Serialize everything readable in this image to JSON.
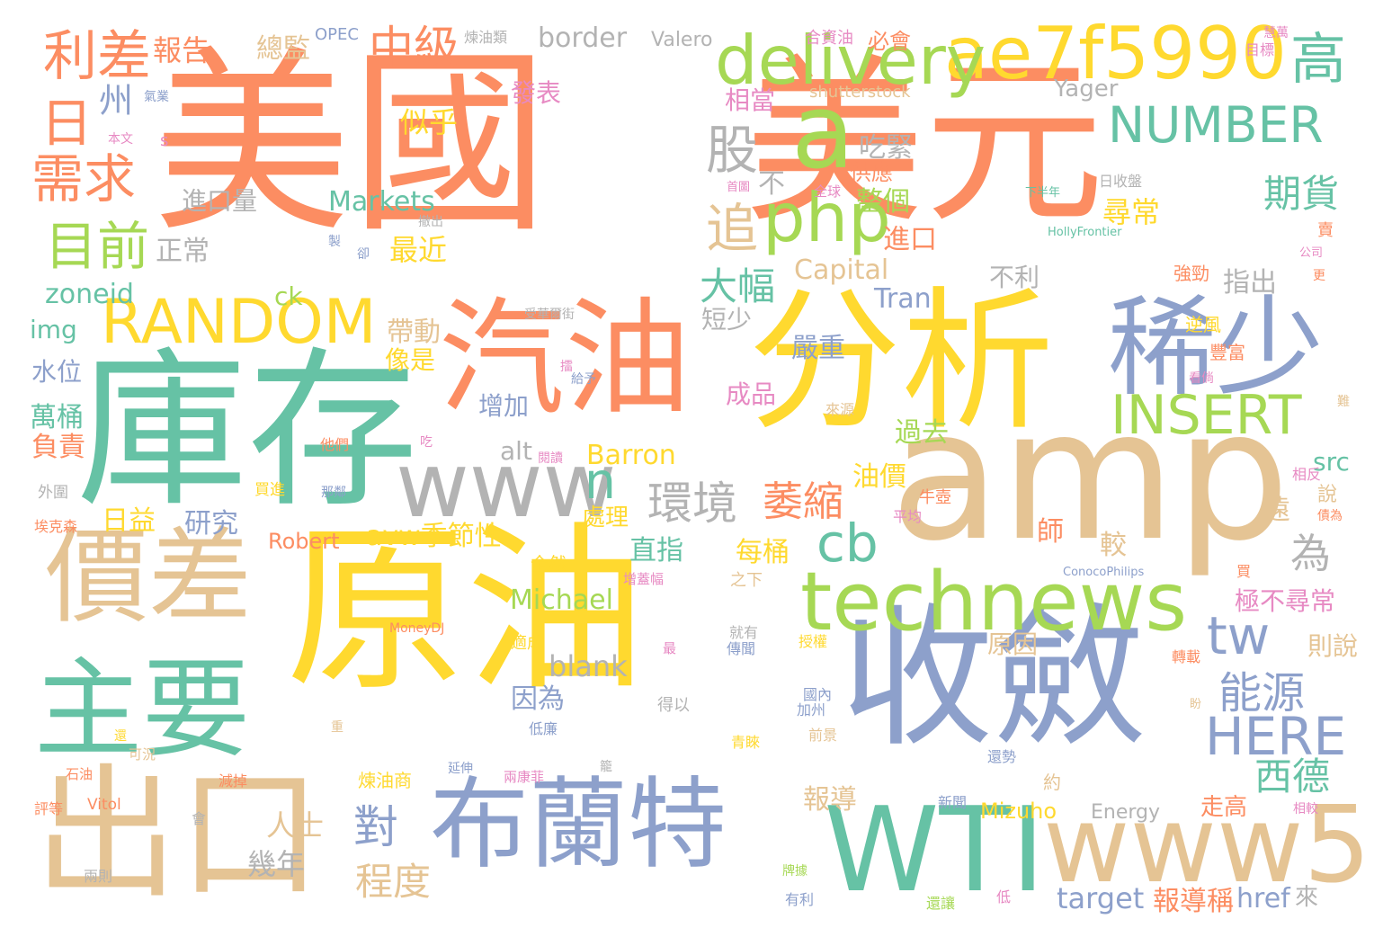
{
  "palette": {
    "orange": "#fc8d62",
    "yellow": "#ffd92f",
    "teal": "#66c2a5",
    "blue": "#8da0cb",
    "tan": "#e5c494",
    "green": "#a6d854",
    "pink": "#e78ac3",
    "gray": "#b3b3b3"
  },
  "words": [
    {
      "text": "美國",
      "color": "orange"
    },
    {
      "text": "美元",
      "color": "orange"
    },
    {
      "text": "原油",
      "color": "yellow"
    },
    {
      "text": "庫存",
      "color": "teal"
    },
    {
      "text": "分析",
      "color": "yellow"
    },
    {
      "text": "amp",
      "color": "tan"
    },
    {
      "text": "收斂",
      "color": "blue"
    },
    {
      "text": "汽油",
      "color": "orange"
    },
    {
      "text": "布蘭特",
      "color": "blue"
    },
    {
      "text": "價差",
      "color": "tan"
    },
    {
      "text": "主要",
      "color": "teal"
    },
    {
      "text": "出口",
      "color": "tan"
    },
    {
      "text": "稀少",
      "color": "blue"
    },
    {
      "text": "WTI",
      "color": "teal"
    },
    {
      "text": "www5",
      "color": "tan"
    },
    {
      "text": "www",
      "color": "gray"
    },
    {
      "text": "a",
      "color": "green"
    },
    {
      "text": "technews",
      "color": "green"
    },
    {
      "text": "ae7f5990",
      "color": "yellow"
    },
    {
      "text": "delivery",
      "color": "green"
    },
    {
      "text": "php",
      "color": "green"
    },
    {
      "text": "利差",
      "color": "orange"
    },
    {
      "text": "RANDOM",
      "color": "yellow"
    },
    {
      "text": "INSERT",
      "color": "green"
    },
    {
      "text": "NUMBER",
      "color": "teal"
    },
    {
      "text": "目前",
      "color": "green"
    },
    {
      "text": "需求",
      "color": "orange"
    },
    {
      "text": "高",
      "color": "teal"
    },
    {
      "text": "股",
      "color": "gray"
    },
    {
      "text": "追",
      "color": "tan"
    },
    {
      "text": "中級",
      "color": "orange"
    },
    {
      "text": "日",
      "color": "orange"
    },
    {
      "text": "環境",
      "color": "gray"
    },
    {
      "text": "萎縮",
      "color": "orange"
    },
    {
      "text": "cb",
      "color": "teal"
    },
    {
      "text": "tw",
      "color": "blue"
    },
    {
      "text": "能源",
      "color": "blue"
    },
    {
      "text": "HERE",
      "color": "blue"
    },
    {
      "text": "n",
      "color": "teal"
    },
    {
      "text": "為",
      "color": "gray"
    },
    {
      "text": "期貨",
      "color": "teal"
    },
    {
      "text": "大幅",
      "color": "teal"
    },
    {
      "text": "西德",
      "color": "teal"
    },
    {
      "text": "對",
      "color": "blue"
    },
    {
      "text": "程度",
      "color": "tan"
    },
    {
      "text": "州",
      "color": "blue"
    },
    {
      "text": "報告",
      "color": "orange"
    },
    {
      "text": "border",
      "color": "gray"
    },
    {
      "text": "總監",
      "color": "tan"
    },
    {
      "text": "Valero",
      "color": "gray"
    },
    {
      "text": "OPEC",
      "color": "blue"
    },
    {
      "text": "煉油類",
      "color": "gray"
    },
    {
      "text": "合資油",
      "color": "pink"
    },
    {
      "text": "必會",
      "color": "orange"
    },
    {
      "text": "發表",
      "color": "pink"
    },
    {
      "text": "相當",
      "color": "pink"
    },
    {
      "text": "Yager",
      "color": "gray"
    },
    {
      "text": "shutterstock",
      "color": "tan"
    },
    {
      "text": "似乎",
      "color": "yellow"
    },
    {
      "text": "吃緊",
      "color": "gray"
    },
    {
      "text": "供應",
      "color": "orange"
    },
    {
      "text": "不",
      "color": "gray"
    },
    {
      "text": "進口量",
      "color": "gray"
    },
    {
      "text": "Markets",
      "color": "teal"
    },
    {
      "text": "整個",
      "color": "green"
    },
    {
      "text": "尋常",
      "color": "yellow"
    },
    {
      "text": "最近",
      "color": "yellow"
    },
    {
      "text": "正常",
      "color": "gray"
    },
    {
      "text": "進口",
      "color": "orange"
    },
    {
      "text": "Capital",
      "color": "tan"
    },
    {
      "text": "zoneid",
      "color": "teal"
    },
    {
      "text": "ck",
      "color": "green"
    },
    {
      "text": "Tran",
      "color": "blue"
    },
    {
      "text": "不利",
      "color": "gray"
    },
    {
      "text": "指出",
      "color": "gray"
    },
    {
      "text": "img",
      "color": "teal"
    },
    {
      "text": "帶動",
      "color": "tan"
    },
    {
      "text": "短少",
      "color": "gray"
    },
    {
      "text": "水位",
      "color": "blue"
    },
    {
      "text": "像是",
      "color": "yellow"
    },
    {
      "text": "嚴重",
      "color": "blue"
    },
    {
      "text": "萬桶",
      "color": "teal"
    },
    {
      "text": "增加",
      "color": "blue"
    },
    {
      "text": "成品",
      "color": "pink"
    },
    {
      "text": "過去",
      "color": "green"
    },
    {
      "text": "負責",
      "color": "orange"
    },
    {
      "text": "alt",
      "color": "gray"
    },
    {
      "text": "Barron",
      "color": "yellow"
    },
    {
      "text": "src",
      "color": "teal"
    },
    {
      "text": "油價",
      "color": "yellow"
    },
    {
      "text": "日益",
      "color": "yellow"
    },
    {
      "text": "研究",
      "color": "blue"
    },
    {
      "text": "avw季節性",
      "color": "yellow"
    },
    {
      "text": "處理",
      "color": "yellow"
    },
    {
      "text": "遠",
      "color": "tan"
    },
    {
      "text": "Robert",
      "color": "orange"
    },
    {
      "text": "直指",
      "color": "teal"
    },
    {
      "text": "每桶",
      "color": "yellow"
    },
    {
      "text": "師",
      "color": "orange"
    },
    {
      "text": "較",
      "color": "tan"
    },
    {
      "text": "Michael",
      "color": "green"
    },
    {
      "text": "極不尋常",
      "color": "pink"
    },
    {
      "text": "blank",
      "color": "gray"
    },
    {
      "text": "原因",
      "color": "tan"
    },
    {
      "text": "則說",
      "color": "tan"
    },
    {
      "text": "因為",
      "color": "blue"
    },
    {
      "text": "約",
      "color": "tan"
    },
    {
      "text": "報導",
      "color": "tan"
    },
    {
      "text": "人士",
      "color": "tan"
    },
    {
      "text": "Mizuho",
      "color": "yellow"
    },
    {
      "text": "Energy",
      "color": "gray"
    },
    {
      "text": "走高",
      "color": "orange"
    },
    {
      "text": "幾年",
      "color": "gray"
    },
    {
      "text": "target",
      "color": "blue"
    },
    {
      "text": "報導稱",
      "color": "orange"
    },
    {
      "text": "href",
      "color": "blue"
    },
    {
      "text": "來",
      "color": "gray"
    },
    {
      "text": "MoneyDJ",
      "color": "orange"
    },
    {
      "text": "ConocoPhilips",
      "color": "blue"
    },
    {
      "text": "HollyFrontier",
      "color": "teal"
    },
    {
      "text": "Vitol",
      "color": "orange"
    },
    {
      "text": "s",
      "color": "pink"
    },
    {
      "text": "本文",
      "color": "pink"
    },
    {
      "text": "氣業",
      "color": "blue"
    },
    {
      "text": "撤出",
      "color": "gray"
    },
    {
      "text": "全球",
      "color": "pink"
    },
    {
      "text": "首圖",
      "color": "pink"
    },
    {
      "text": "下半年",
      "color": "teal"
    },
    {
      "text": "日收盤",
      "color": "gray"
    },
    {
      "text": "目標",
      "color": "pink"
    },
    {
      "text": "慧萬",
      "color": "pink"
    },
    {
      "text": "賣",
      "color": "orange"
    },
    {
      "text": "公司",
      "color": "pink"
    },
    {
      "text": "更",
      "color": "orange"
    },
    {
      "text": "強勁",
      "color": "orange"
    },
    {
      "text": "逆風",
      "color": "yellow"
    },
    {
      "text": "豐富",
      "color": "orange"
    },
    {
      "text": "看倘",
      "color": "pink"
    },
    {
      "text": "難",
      "color": "tan"
    },
    {
      "text": "來源",
      "color": "tan"
    },
    {
      "text": "受華爾街",
      "color": "gray"
    },
    {
      "text": "擂",
      "color": "pink"
    },
    {
      "text": "給予",
      "color": "blue"
    },
    {
      "text": "他們",
      "color": "orange"
    },
    {
      "text": "吃",
      "color": "pink"
    },
    {
      "text": "閱讀",
      "color": "pink"
    },
    {
      "text": "卻",
      "color": "blue"
    },
    {
      "text": "製",
      "color": "blue"
    },
    {
      "text": "外圍",
      "color": "gray"
    },
    {
      "text": "買進",
      "color": "yellow"
    },
    {
      "text": "埃克森",
      "color": "orange"
    },
    {
      "text": "那鄰",
      "color": "blue"
    },
    {
      "text": "牛壺",
      "color": "orange"
    },
    {
      "text": "平均",
      "color": "pink"
    },
    {
      "text": "相反",
      "color": "pink"
    },
    {
      "text": "債為",
      "color": "orange"
    },
    {
      "text": "說",
      "color": "tan"
    },
    {
      "text": "全然",
      "color": "yellow"
    },
    {
      "text": "增蓋幅",
      "color": "pink"
    },
    {
      "text": "之下",
      "color": "tan"
    },
    {
      "text": "買",
      "color": "orange"
    },
    {
      "text": "適成",
      "color": "yellow"
    },
    {
      "text": "最",
      "color": "pink"
    },
    {
      "text": "就有",
      "color": "gray"
    },
    {
      "text": "傳聞",
      "color": "blue"
    },
    {
      "text": "授權",
      "color": "yellow"
    },
    {
      "text": "轉載",
      "color": "orange"
    },
    {
      "text": "國內",
      "color": "blue"
    },
    {
      "text": "得以",
      "color": "gray"
    },
    {
      "text": "加州",
      "color": "blue"
    },
    {
      "text": "盼",
      "color": "tan"
    },
    {
      "text": "低廉",
      "color": "blue"
    },
    {
      "text": "前景",
      "color": "tan"
    },
    {
      "text": "青睞",
      "color": "yellow"
    },
    {
      "text": "還勢",
      "color": "blue"
    },
    {
      "text": "重",
      "color": "tan"
    },
    {
      "text": "還",
      "color": "yellow"
    },
    {
      "text": "延伸",
      "color": "blue"
    },
    {
      "text": "籠",
      "color": "gray"
    },
    {
      "text": "可況",
      "color": "tan"
    },
    {
      "text": "石油",
      "color": "orange"
    },
    {
      "text": "減掉",
      "color": "orange"
    },
    {
      "text": "兩康菲",
      "color": "pink"
    },
    {
      "text": "煉油商",
      "color": "yellow"
    },
    {
      "text": "新聞",
      "color": "blue"
    },
    {
      "text": "相較",
      "color": "pink"
    },
    {
      "text": "評等",
      "color": "orange"
    },
    {
      "text": "會",
      "color": "gray"
    },
    {
      "text": "兩則",
      "color": "gray"
    },
    {
      "text": "牌據",
      "color": "green"
    },
    {
      "text": "有利",
      "color": "blue"
    },
    {
      "text": "還讓",
      "color": "green"
    },
    {
      "text": "低",
      "color": "pink"
    }
  ]
}
